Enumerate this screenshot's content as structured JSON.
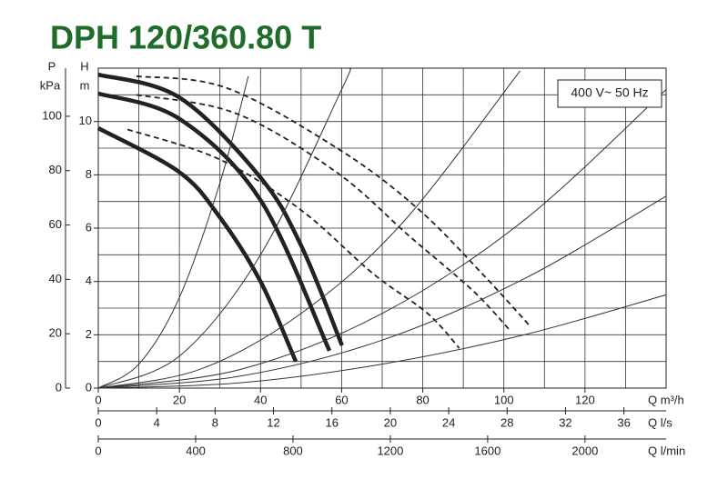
{
  "chart_data": {
    "type": "line",
    "title": "DPH 120/360.80 T",
    "annotation": "400 V~ 50 Hz",
    "ylabel": "H",
    "yunit": "m",
    "y2label": "P",
    "y2unit": "kPa",
    "xlabel": "Q m³/h",
    "x2label": "Q l/s",
    "x3label": "Q l/min",
    "xlim": [
      0,
      140
    ],
    "xticks": [
      0,
      20,
      40,
      60,
      80,
      100,
      120
    ],
    "xgrid": [
      0,
      10,
      20,
      30,
      40,
      50,
      60,
      70,
      80,
      90,
      100,
      110,
      120,
      130,
      140
    ],
    "x2lim": [
      0,
      38.89
    ],
    "x2ticks": [
      0,
      4,
      8,
      12,
      16,
      20,
      24,
      28,
      32,
      36
    ],
    "x3lim": [
      0,
      2333.3
    ],
    "x3ticks": [
      0,
      400,
      800,
      1200,
      1600,
      2000
    ],
    "ylim": [
      0,
      12
    ],
    "yticks": [
      0,
      2,
      4,
      6,
      8,
      10
    ],
    "ygrid": [
      0,
      1,
      2,
      3,
      4,
      5,
      6,
      7,
      8,
      9,
      10,
      11,
      12
    ],
    "y2lim": [
      0,
      117.7
    ],
    "y2ticks": [
      0,
      20,
      40,
      60,
      80,
      100
    ],
    "grid": true,
    "series": [
      {
        "line_style": "solid",
        "color": "#222222",
        "x": [
          0,
          20,
          40,
          50,
          60.1
        ],
        "values": [
          11.76,
          10.9,
          7.9,
          5.35,
          1.6
        ]
      },
      {
        "line_style": "solid",
        "color": "#222222",
        "x": [
          0,
          20,
          40,
          57
        ],
        "values": [
          11.05,
          10.1,
          7.05,
          1.4
        ]
      },
      {
        "line_style": "solid",
        "color": "#222222",
        "x": [
          0,
          20,
          30,
          40,
          48.7
        ],
        "values": [
          9.75,
          8.1,
          6.4,
          4.0,
          1.0
        ]
      },
      {
        "line_style": "dashed",
        "color": "#222222",
        "x": [
          9.4,
          31.8,
          59.9,
          79,
          94.6,
          106.3
        ],
        "values": [
          11.7,
          11.25,
          8.9,
          6.7,
          4.3,
          2.35
        ]
      },
      {
        "line_style": "dashed",
        "color": "#222222",
        "x": [
          9.4,
          34,
          58.7,
          76.7,
          92.4,
          101.3
        ],
        "values": [
          11.0,
          10.3,
          8.1,
          5.7,
          3.65,
          2.2
        ]
      },
      {
        "line_style": "dashed",
        "color": "#222222",
        "x": [
          7.2,
          29.6,
          49.8,
          67.7,
          81.2,
          89
        ],
        "values": [
          9.7,
          8.6,
          6.7,
          4.3,
          2.8,
          1.5
        ]
      },
      {
        "line_style": "thin",
        "color": "#333333",
        "x": [
          0,
          10,
          20,
          30,
          37
        ],
        "values": [
          0,
          0.9,
          3.4,
          7.7,
          11.7
        ]
      },
      {
        "line_style": "thin",
        "color": "#333333",
        "x": [
          0,
          20,
          40,
          60,
          62
        ],
        "values": [
          0,
          1.2,
          5.0,
          11.2,
          12
        ]
      },
      {
        "line_style": "thin",
        "color": "#333333",
        "x": [
          0,
          25,
          50,
          75,
          104
        ],
        "values": [
          0,
          0.7,
          2.8,
          6.2,
          11.9
        ]
      },
      {
        "line_style": "thin",
        "color": "#333333",
        "x": [
          0,
          35,
          70,
          105,
          140
        ],
        "values": [
          0,
          0.7,
          2.8,
          6.3,
          11.2
        ]
      },
      {
        "line_style": "thin",
        "color": "#333333",
        "x": [
          0,
          35,
          70,
          105,
          140
        ],
        "values": [
          0,
          0.45,
          1.8,
          4.1,
          7.2
        ]
      },
      {
        "line_style": "thin",
        "color": "#333333",
        "x": [
          0,
          35,
          70,
          105,
          140
        ],
        "values": [
          0,
          0.2,
          0.9,
          2.0,
          3.5
        ]
      }
    ]
  }
}
